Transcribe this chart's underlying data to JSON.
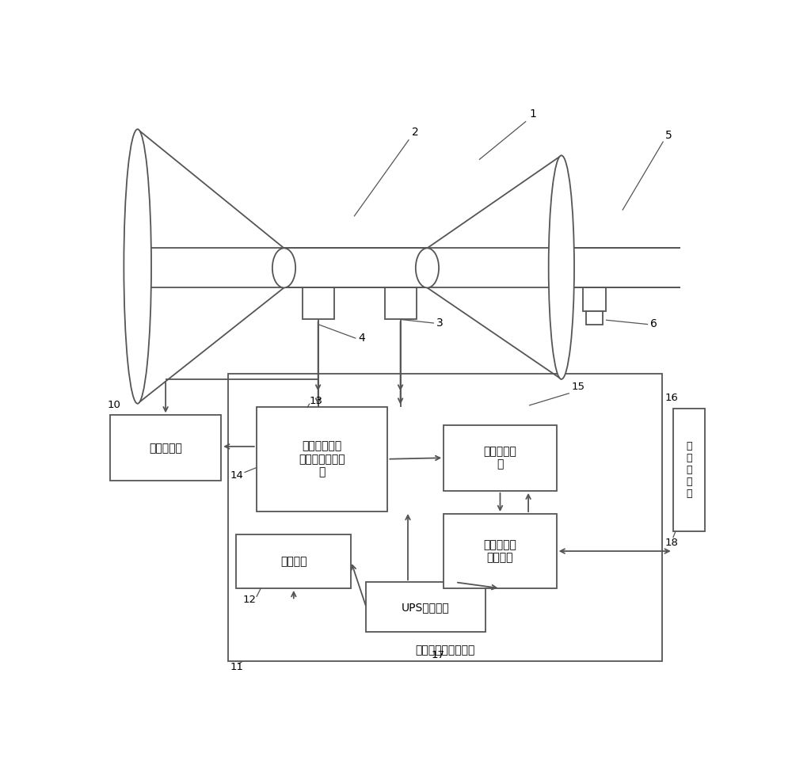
{
  "bg_color": "#ffffff",
  "lc": "#555555",
  "lw": 1.3,
  "labels": {
    "box_pulse": "脉冲采集单元\n脉冲隔离整形单\n元",
    "box_signal": "信号放大单\n元",
    "box_comm": "通讯模块",
    "box_ups": "UPS供电模块",
    "box_time": "高精度时间\n测量模块",
    "box_flow": "流量计算机",
    "box_detect": "检\n测\n计\n算\n机",
    "outer_label": "涡轮流量计检测工具"
  }
}
